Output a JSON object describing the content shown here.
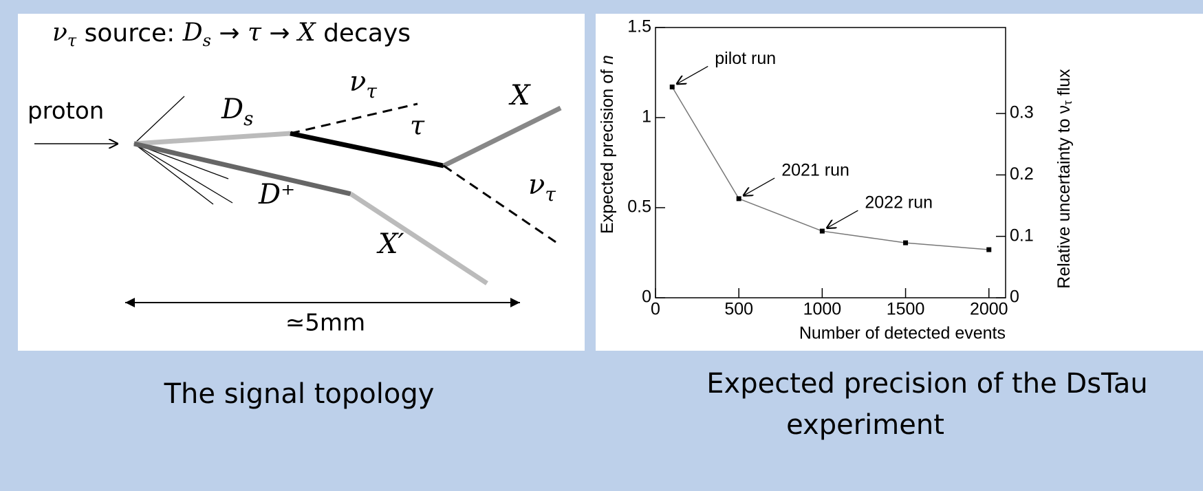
{
  "diagram": {
    "title": {
      "nu": "ν",
      "nu_sub": "τ",
      "source": " source: ",
      "d": "D",
      "d_sub": "s",
      "arrow1": " → ",
      "tau": "τ",
      "arrow2": " → ",
      "x": "X",
      "decays": " decays"
    },
    "proton": "proton",
    "ds": {
      "d": "D",
      "sub": "s"
    },
    "nu_top": {
      "nu": "ν",
      "sub": "τ"
    },
    "tau": "τ",
    "x": "X",
    "dplus": "D⁺",
    "xprime": "X′",
    "nu_right": {
      "nu": "ν",
      "sub": "τ"
    },
    "length": "≃5mm"
  },
  "captions": {
    "left": "The signal topology",
    "right_line1": "Expected precision of the DsTau",
    "right_line2": "experiment"
  },
  "chart_data": {
    "type": "line",
    "xlabel": "Number of detected events",
    "ylabel": {
      "text": "Expected precision of ",
      "symbol": "n"
    },
    "y2label": {
      "text": "Relative uncertainty to ν",
      "sub": "τ",
      "tail": " flux"
    },
    "x": [
      100,
      500,
      1000,
      1500,
      2000
    ],
    "series": [
      {
        "values": [
          1.17,
          0.55,
          0.37,
          0.305,
          0.267
        ],
        "color": "#000000",
        "line_color": "#777777"
      }
    ],
    "xlim": [
      0,
      2100
    ],
    "xticks": [
      0,
      500,
      1000,
      1500,
      2000
    ],
    "ylim": [
      0,
      1.5
    ],
    "yticks": [
      0,
      0.5,
      1,
      1.5
    ],
    "y2lim": [
      0,
      0.44
    ],
    "y2ticks": [
      0,
      0.1,
      0.2,
      0.3
    ],
    "annotations": [
      {
        "text": "pilot run",
        "x": 100,
        "y": 1.17
      },
      {
        "text": "2021 run",
        "x": 500,
        "y": 0.55
      },
      {
        "text": "2022 run",
        "x": 1000,
        "y": 0.37
      }
    ]
  }
}
